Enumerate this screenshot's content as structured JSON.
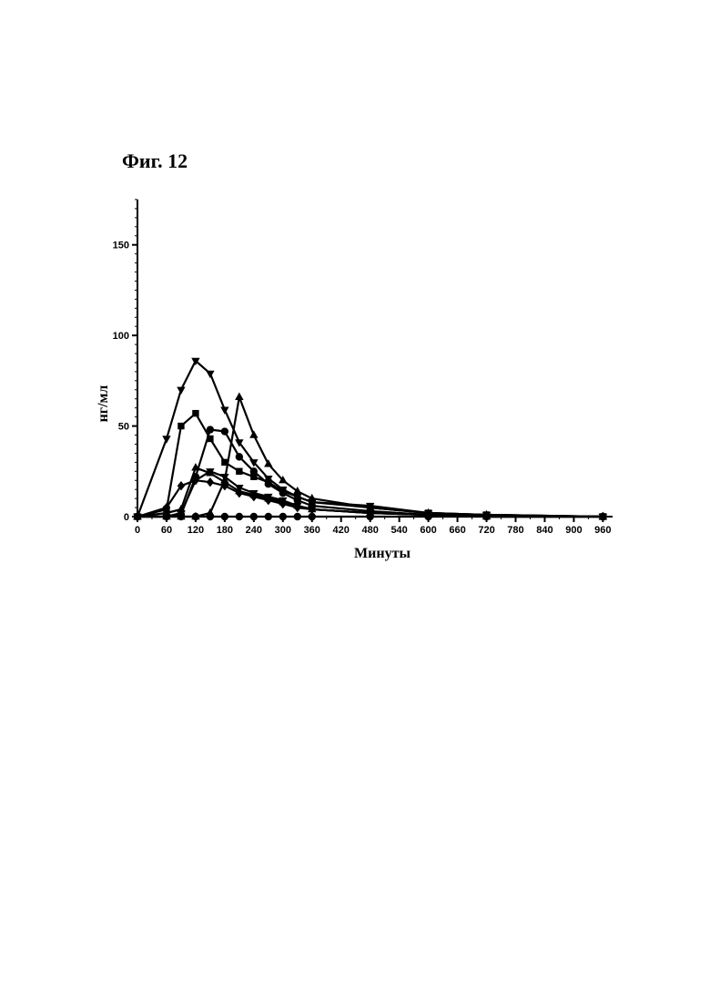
{
  "figure_label": "Фиг. 12",
  "chart_data": {
    "type": "line",
    "title": "",
    "xlabel": "Минуты",
    "ylabel": "нг/мл",
    "xlim": [
      0,
      980
    ],
    "ylim": [
      0,
      175
    ],
    "xticks": [
      0,
      60,
      120,
      180,
      240,
      300,
      360,
      420,
      480,
      540,
      600,
      660,
      720,
      780,
      840,
      900,
      960
    ],
    "yticks": [
      0,
      50,
      100,
      150
    ],
    "grid": false,
    "legend": "none",
    "colors": {
      "ink": "#000000",
      "background": "#ffffff"
    },
    "series": [
      {
        "marker": "triangle-down",
        "points": [
          [
            0,
            0
          ],
          [
            60,
            43
          ],
          [
            90,
            70
          ],
          [
            120,
            86
          ],
          [
            150,
            79
          ],
          [
            180,
            59
          ],
          [
            210,
            41
          ],
          [
            240,
            30
          ],
          [
            270,
            21
          ],
          [
            300,
            15
          ],
          [
            330,
            11
          ],
          [
            360,
            8
          ],
          [
            480,
            6
          ],
          [
            600,
            2
          ],
          [
            720,
            1
          ],
          [
            960,
            0
          ]
        ]
      },
      {
        "marker": "square",
        "points": [
          [
            0,
            0
          ],
          [
            60,
            4
          ],
          [
            90,
            50
          ],
          [
            120,
            57
          ],
          [
            150,
            43
          ],
          [
            180,
            30
          ],
          [
            210,
            25
          ],
          [
            240,
            22
          ],
          [
            270,
            19
          ],
          [
            300,
            14
          ],
          [
            330,
            11
          ],
          [
            360,
            8
          ],
          [
            480,
            5
          ],
          [
            600,
            2
          ],
          [
            720,
            1
          ],
          [
            960,
            0
          ]
        ]
      },
      {
        "marker": "triangle-up",
        "points": [
          [
            0,
            0
          ],
          [
            60,
            0
          ],
          [
            90,
            0
          ],
          [
            120,
            0
          ],
          [
            150,
            2
          ],
          [
            180,
            20
          ],
          [
            210,
            66
          ],
          [
            240,
            45
          ],
          [
            270,
            29
          ],
          [
            300,
            20
          ],
          [
            330,
            14
          ],
          [
            360,
            10
          ],
          [
            480,
            5
          ],
          [
            600,
            2
          ],
          [
            720,
            1
          ],
          [
            960,
            0
          ]
        ]
      },
      {
        "marker": "circle",
        "points": [
          [
            0,
            0
          ],
          [
            60,
            0
          ],
          [
            90,
            1
          ],
          [
            120,
            22
          ],
          [
            150,
            48
          ],
          [
            180,
            47
          ],
          [
            210,
            33
          ],
          [
            240,
            25
          ],
          [
            270,
            18
          ],
          [
            300,
            13
          ],
          [
            330,
            9
          ],
          [
            360,
            6
          ],
          [
            480,
            3
          ],
          [
            600,
            1
          ],
          [
            720,
            0
          ],
          [
            960,
            0
          ]
        ]
      },
      {
        "marker": "diamond",
        "points": [
          [
            0,
            0
          ],
          [
            60,
            5
          ],
          [
            90,
            17
          ],
          [
            120,
            20
          ],
          [
            150,
            19
          ],
          [
            180,
            17
          ],
          [
            210,
            13
          ],
          [
            240,
            11
          ],
          [
            270,
            9
          ],
          [
            300,
            7
          ],
          [
            330,
            5
          ],
          [
            360,
            4
          ],
          [
            480,
            2
          ],
          [
            600,
            1
          ],
          [
            720,
            0
          ],
          [
            960,
            0
          ]
        ]
      },
      {
        "marker": "triangle-down",
        "points": [
          [
            0,
            0
          ],
          [
            60,
            0
          ],
          [
            90,
            2
          ],
          [
            120,
            20
          ],
          [
            150,
            25
          ],
          [
            180,
            22
          ],
          [
            210,
            16
          ],
          [
            240,
            13
          ],
          [
            270,
            11
          ],
          [
            300,
            9
          ],
          [
            330,
            6
          ],
          [
            360,
            4
          ],
          [
            480,
            2
          ],
          [
            600,
            1
          ],
          [
            720,
            0
          ],
          [
            960,
            0
          ]
        ]
      },
      {
        "marker": "triangle-up",
        "points": [
          [
            0,
            0
          ],
          [
            60,
            2
          ],
          [
            90,
            4
          ],
          [
            120,
            27
          ],
          [
            150,
            24
          ],
          [
            180,
            19
          ],
          [
            210,
            14
          ],
          [
            240,
            12
          ],
          [
            270,
            10
          ],
          [
            300,
            8
          ],
          [
            330,
            6
          ],
          [
            360,
            4
          ],
          [
            480,
            2
          ],
          [
            600,
            1
          ],
          [
            720,
            0
          ],
          [
            960,
            0
          ]
        ]
      },
      {
        "marker": "circle",
        "points": [
          [
            0,
            0
          ],
          [
            60,
            0
          ],
          [
            90,
            0
          ],
          [
            120,
            0
          ],
          [
            150,
            0
          ],
          [
            180,
            0
          ],
          [
            210,
            0
          ],
          [
            240,
            0
          ],
          [
            270,
            0
          ],
          [
            300,
            0
          ],
          [
            330,
            0
          ],
          [
            360,
            0
          ],
          [
            480,
            0
          ],
          [
            600,
            0
          ],
          [
            720,
            0
          ],
          [
            960,
            0
          ]
        ]
      }
    ]
  }
}
